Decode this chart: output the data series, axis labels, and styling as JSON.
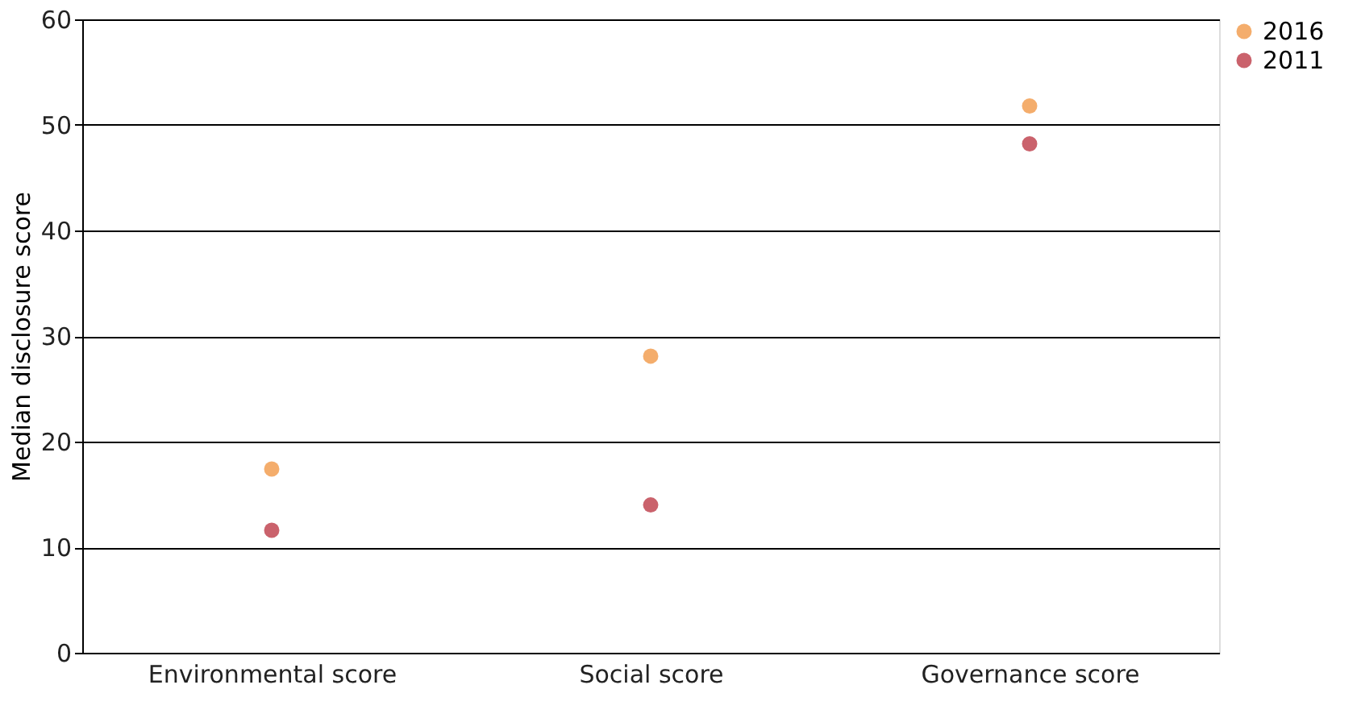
{
  "chart_data": {
    "type": "scatter",
    "ylabel": "Median disclosure score",
    "categories": [
      "Environmental score",
      "Social score",
      "Governance score"
    ],
    "series": [
      {
        "name": "2016",
        "color": "#f08a2e",
        "values": [
          17.4,
          28.1,
          51.8
        ]
      },
      {
        "name": "2011",
        "color": "#b3202e",
        "values": [
          11.6,
          14.0,
          48.2
        ]
      }
    ],
    "ylim": [
      0,
      60
    ],
    "yticks": [
      0,
      10,
      20,
      30,
      40,
      50,
      60
    ],
    "grid": "y",
    "legend": "top right",
    "marker": "circle"
  }
}
